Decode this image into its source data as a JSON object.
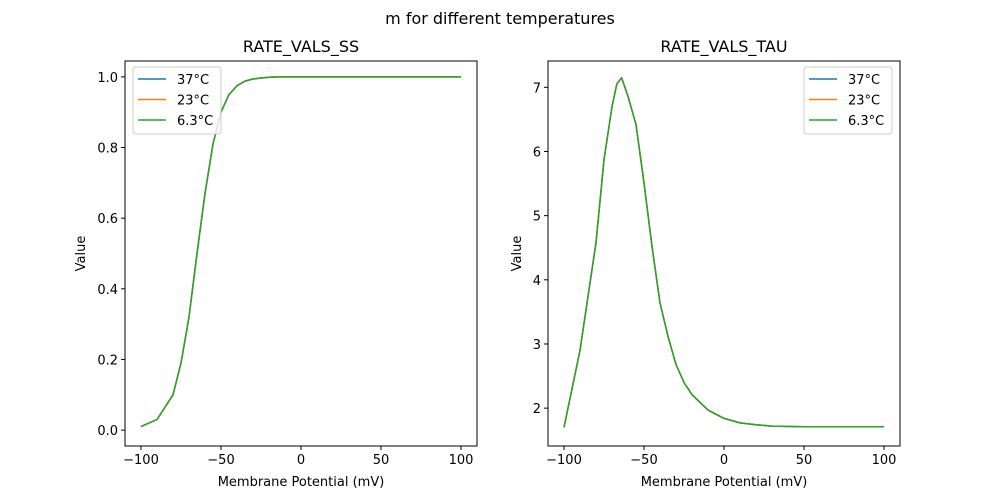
{
  "suptitle": "m for different temperatures",
  "chart_data": [
    {
      "type": "line",
      "title": "RATE_VALS_SS",
      "xlabel": "Membrane Potential (mV)",
      "ylabel": "Value",
      "xlim": [
        -110,
        110
      ],
      "ylim": [
        -0.045,
        1.045
      ],
      "xticks": [
        -100,
        -50,
        0,
        50,
        100
      ],
      "xtick_labels": [
        "−100",
        "−50",
        "0",
        "50",
        "100"
      ],
      "yticks": [
        0.0,
        0.2,
        0.4,
        0.6,
        0.8,
        1.0
      ],
      "ytick_labels": [
        "0.0",
        "0.2",
        "0.4",
        "0.6",
        "0.8",
        "1.0"
      ],
      "legend_position": "upper-left",
      "x": [
        -100,
        -90,
        -80,
        -75,
        -70,
        -65,
        -60,
        -55,
        -50,
        -45,
        -40,
        -35,
        -30,
        -25,
        -20,
        -15,
        -10,
        0,
        50,
        100
      ],
      "series": [
        {
          "name": "37°C",
          "color": "#1f77b4",
          "values": [
            0.01,
            0.03,
            0.1,
            0.19,
            0.32,
            0.5,
            0.67,
            0.81,
            0.9,
            0.95,
            0.975,
            0.988,
            0.994,
            0.997,
            0.999,
            1.0,
            1.0,
            1.0,
            1.0,
            1.0
          ]
        },
        {
          "name": "23°C",
          "color": "#ff7f0e",
          "values": [
            0.01,
            0.03,
            0.1,
            0.19,
            0.32,
            0.5,
            0.67,
            0.81,
            0.9,
            0.95,
            0.975,
            0.988,
            0.994,
            0.997,
            0.999,
            1.0,
            1.0,
            1.0,
            1.0,
            1.0
          ]
        },
        {
          "name": "6.3°C",
          "color": "#2ca02c",
          "values": [
            0.01,
            0.03,
            0.1,
            0.19,
            0.32,
            0.5,
            0.67,
            0.81,
            0.9,
            0.95,
            0.975,
            0.988,
            0.994,
            0.997,
            0.999,
            1.0,
            1.0,
            1.0,
            1.0,
            1.0
          ]
        }
      ]
    },
    {
      "type": "line",
      "title": "RATE_VALS_TAU",
      "xlabel": "Membrane Potential (mV)",
      "ylabel": "Value",
      "xlim": [
        -110,
        110
      ],
      "ylim": [
        1.41,
        7.41
      ],
      "xticks": [
        -100,
        -50,
        0,
        50,
        100
      ],
      "xtick_labels": [
        "−100",
        "−50",
        "0",
        "50",
        "100"
      ],
      "yticks": [
        2,
        3,
        4,
        5,
        6,
        7
      ],
      "ytick_labels": [
        "2",
        "3",
        "4",
        "5",
        "6",
        "7"
      ],
      "legend_position": "upper-right",
      "x": [
        -100,
        -90,
        -80,
        -75,
        -70,
        -67,
        -64,
        -60,
        -55,
        -50,
        -45,
        -40,
        -35,
        -30,
        -25,
        -20,
        -10,
        0,
        10,
        20,
        30,
        50,
        100
      ],
      "series": [
        {
          "name": "37°C",
          "color": "#1f77b4",
          "values": [
            1.7,
            2.9,
            4.58,
            5.87,
            6.7,
            7.05,
            7.15,
            6.86,
            6.42,
            5.51,
            4.52,
            3.64,
            3.12,
            2.68,
            2.4,
            2.21,
            1.97,
            1.84,
            1.77,
            1.74,
            1.72,
            1.71,
            1.71
          ]
        },
        {
          "name": "23°C",
          "color": "#ff7f0e",
          "values": [
            1.7,
            2.9,
            4.58,
            5.87,
            6.7,
            7.05,
            7.15,
            6.86,
            6.42,
            5.51,
            4.52,
            3.64,
            3.12,
            2.68,
            2.4,
            2.21,
            1.97,
            1.84,
            1.77,
            1.74,
            1.72,
            1.71,
            1.71
          ]
        },
        {
          "name": "6.3°C",
          "color": "#2ca02c",
          "values": [
            1.7,
            2.9,
            4.58,
            5.87,
            6.7,
            7.05,
            7.15,
            6.86,
            6.42,
            5.51,
            4.52,
            3.64,
            3.12,
            2.68,
            2.4,
            2.21,
            1.97,
            1.84,
            1.77,
            1.74,
            1.72,
            1.71,
            1.71
          ]
        }
      ]
    }
  ]
}
